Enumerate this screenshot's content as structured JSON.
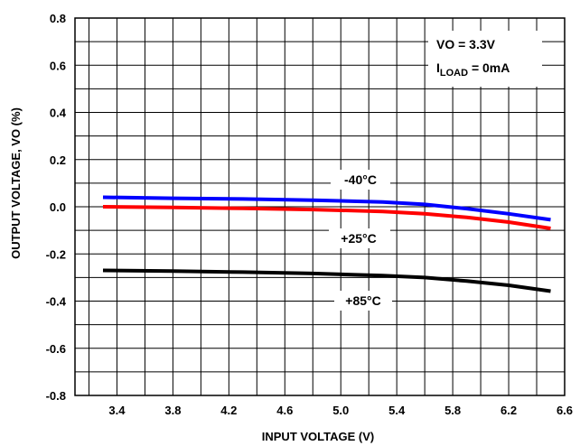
{
  "chart_data": {
    "type": "line",
    "xlabel": "INPUT VOLTAGE (V)",
    "ylabel": "OUTPUT VOLTAGE, VO (%)",
    "xlim": [
      3.1,
      6.6
    ],
    "ylim": [
      -0.8,
      0.8
    ],
    "grid": true,
    "xticks": [
      3.4,
      3.8,
      4.2,
      4.6,
      5.0,
      5.4,
      5.8,
      6.2,
      6.6
    ],
    "xtick_labels": [
      "3.4",
      "3.8",
      "4.2",
      "4.6",
      "5.0",
      "5.4",
      "5.8",
      "6.2",
      "6.6"
    ],
    "yticks": [
      -0.8,
      -0.6,
      -0.4,
      -0.2,
      0.0,
      0.2,
      0.4,
      0.6,
      0.8
    ],
    "ytick_labels": [
      "-0.8",
      "-0.6",
      "-0.4",
      "-0.2",
      "0.0",
      "0.2",
      "0.4",
      "0.6",
      "0.8"
    ],
    "series": [
      {
        "name": "-40°C",
        "color": "#0000ff",
        "x": [
          3.3,
          3.8,
          4.3,
          4.8,
          5.3,
          5.6,
          5.9,
          6.2,
          6.5
        ],
        "y": [
          0.04,
          0.036,
          0.033,
          0.028,
          0.02,
          0.01,
          -0.008,
          -0.03,
          -0.055
        ]
      },
      {
        "name": "+25°C",
        "color": "#ff0000",
        "x": [
          3.3,
          3.8,
          4.3,
          4.8,
          5.3,
          5.6,
          5.9,
          6.2,
          6.5
        ],
        "y": [
          0.0,
          -0.003,
          -0.007,
          -0.012,
          -0.02,
          -0.03,
          -0.045,
          -0.065,
          -0.092
        ]
      },
      {
        "name": "+85°C",
        "color": "#000000",
        "x": [
          3.3,
          3.8,
          4.3,
          4.8,
          5.3,
          5.6,
          5.9,
          6.2,
          6.5
        ],
        "y": [
          -0.27,
          -0.273,
          -0.277,
          -0.283,
          -0.292,
          -0.3,
          -0.315,
          -0.333,
          -0.358
        ]
      }
    ],
    "annotations": {
      "vo": "VO = 3.3V",
      "iload_prefix": "I",
      "iload_sub": "LOAD",
      "iload_suffix": " = 0mA",
      "label_m40": "-40°C",
      "label_25": "+25°C",
      "label_85": "+85°C"
    }
  }
}
